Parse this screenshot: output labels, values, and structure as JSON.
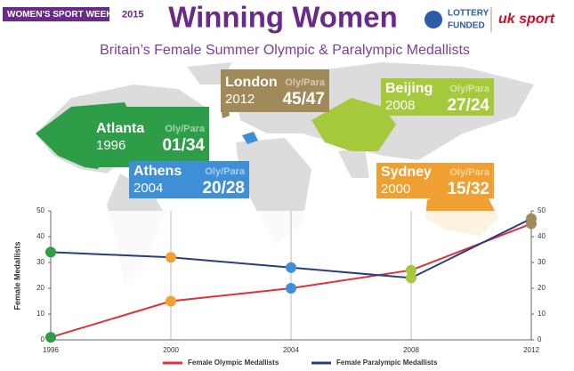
{
  "header": {
    "badge": "WOMEN'S SPORT WEEK",
    "badge_year": "2015",
    "lottery": "LOTTERY",
    "funded": "FUNDED",
    "uk_sport": "uk sport"
  },
  "chart_data": {
    "type": "line",
    "title": "Winning Women",
    "subtitle": "Britain’s Female Summer Olympic & Paralympic Medallists",
    "y_label": "Female Medallists",
    "x": [
      1996,
      2000,
      2004,
      2008,
      2012
    ],
    "series": [
      {
        "name": "Female Olympic Medallists",
        "color": "#e0303a",
        "values": [
          1,
          15,
          20,
          27,
          45
        ]
      },
      {
        "name": "Female Paralympic Medallists",
        "color": "#2c3e7a",
        "values": [
          34,
          32,
          28,
          24,
          47
        ]
      }
    ],
    "point_colors": [
      "#2e9d48",
      "#f0a030",
      "#3f8fd6",
      "#a5c93b",
      "#a08a5a"
    ],
    "xlim": [
      1996,
      2012
    ],
    "xticks": [
      1996,
      2000,
      2004,
      2008,
      2012
    ],
    "ylim": [
      0,
      50
    ],
    "yticks": [
      0,
      10,
      20,
      30,
      40,
      50
    ],
    "grid": true,
    "annotations": [
      {
        "city": "Atlanta",
        "year": "1996",
        "key": "Oly/Para",
        "score": "01/34",
        "color": "#2e9d48"
      },
      {
        "city": "London",
        "year": "2012",
        "key": "Oly/Para",
        "score": "45/47",
        "color": "#a08a5a"
      },
      {
        "city": "Beijing",
        "year": "2008",
        "key": "Oly/Para",
        "score": "27/24",
        "color": "#a5c93b"
      },
      {
        "city": "Athens",
        "year": "2004",
        "key": "Oly/Para",
        "score": "20/28",
        "color": "#3f8fd6"
      },
      {
        "city": "Sydney",
        "year": "2000",
        "key": "Oly/Para",
        "score": "15/32",
        "color": "#f0a030"
      }
    ]
  }
}
